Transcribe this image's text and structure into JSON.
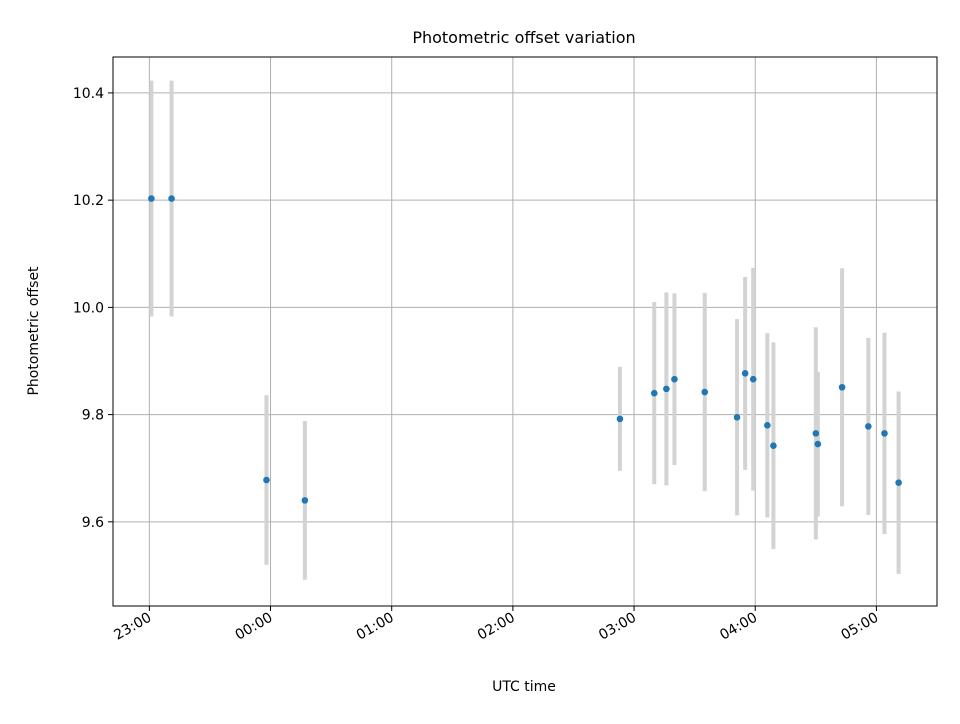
{
  "chart_data": {
    "type": "scatter",
    "title": "Photometric offset variation",
    "xlabel": "UTC time",
    "ylabel": "Photometric offset",
    "x_tick_labels": [
      "23:00",
      "00:00",
      "01:00",
      "02:00",
      "03:00",
      "04:00",
      "05:00"
    ],
    "x_tick_times": [
      "23:00",
      "00:00",
      "01:00",
      "02:00",
      "03:00",
      "04:00",
      "05:00"
    ],
    "y_ticks": [
      9.6,
      9.8,
      10.0,
      10.2,
      10.4
    ],
    "y_tick_labels": [
      "9.6",
      "9.8",
      "10.0",
      "10.2",
      "10.4"
    ],
    "xlim": [
      "22:42",
      "05:30"
    ],
    "ylim": [
      9.443,
      10.467
    ],
    "grid": true,
    "colors": {
      "point": "#1f77b4",
      "errorbar": "#d3d3d3",
      "grid": "#b0b0b0",
      "axes": "#000000"
    },
    "points": [
      {
        "time": "23:01",
        "y": 10.203,
        "err": 0.22
      },
      {
        "time": "23:11",
        "y": 10.203,
        "err": 0.22
      },
      {
        "time": "23:58",
        "y": 9.678,
        "err": 0.158
      },
      {
        "time": "00:17",
        "y": 9.64,
        "err": 0.148
      },
      {
        "time": "02:53",
        "y": 9.792,
        "err": 0.097
      },
      {
        "time": "03:10",
        "y": 9.84,
        "err": 0.17
      },
      {
        "time": "03:16",
        "y": 9.848,
        "err": 0.18
      },
      {
        "time": "03:20",
        "y": 9.866,
        "err": 0.16
      },
      {
        "time": "03:35",
        "y": 9.842,
        "err": 0.185
      },
      {
        "time": "03:51",
        "y": 9.795,
        "err": 0.183
      },
      {
        "time": "03:55",
        "y": 9.877,
        "err": 0.18
      },
      {
        "time": "03:59",
        "y": 9.866,
        "err": 0.208
      },
      {
        "time": "04:06",
        "y": 9.78,
        "err": 0.172
      },
      {
        "time": "04:09",
        "y": 9.742,
        "err": 0.193
      },
      {
        "time": "04:30",
        "y": 9.765,
        "err": 0.198
      },
      {
        "time": "04:31",
        "y": 9.745,
        "err": 0.135
      },
      {
        "time": "04:43",
        "y": 9.851,
        "err": 0.222
      },
      {
        "time": "04:56",
        "y": 9.778,
        "err": 0.165
      },
      {
        "time": "05:04",
        "y": 9.765,
        "err": 0.188
      },
      {
        "time": "05:11",
        "y": 9.673,
        "err": 0.17
      }
    ]
  }
}
